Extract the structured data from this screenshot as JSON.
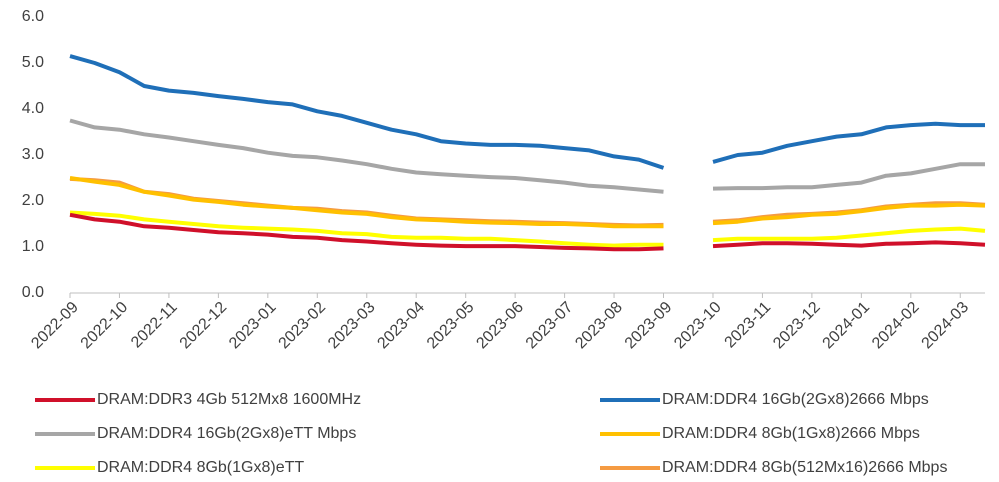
{
  "chart_data": {
    "type": "line",
    "categories": [
      "2022-09",
      null,
      "2022-10",
      null,
      "2022-11",
      null,
      "2022-12",
      null,
      "2023-01",
      null,
      "2023-02",
      null,
      "2023-03",
      null,
      "2023-04",
      null,
      "2023-05",
      null,
      "2023-06",
      null,
      "2023-07",
      null,
      "2023-08",
      null,
      "2023-09",
      null,
      "2023-10",
      null,
      "2023-11",
      null,
      "2023-12",
      null,
      "2024-01",
      null,
      "2024-02",
      null,
      "2024-03",
      null
    ],
    "series": [
      {
        "name": "DRAM:DDR3 4Gb 512Mx8 1600MHz",
        "color": "#d0102a",
        "values": [
          1.7,
          1.6,
          1.55,
          1.45,
          1.42,
          1.37,
          1.32,
          1.3,
          1.27,
          1.22,
          1.2,
          1.15,
          1.12,
          1.08,
          1.05,
          1.03,
          1.02,
          1.02,
          1.02,
          1.0,
          0.98,
          0.97,
          0.95,
          0.95,
          0.97,
          null,
          1.02,
          1.05,
          1.08,
          1.08,
          1.07,
          1.05,
          1.03,
          1.07,
          1.08,
          1.1,
          1.08,
          1.05
        ]
      },
      {
        "name": "DRAM:DDR4 16Gb(2Gx8)2666 Mbps",
        "color": "#1f6fb8",
        "values": [
          5.15,
          5.0,
          4.8,
          4.5,
          4.4,
          4.35,
          4.28,
          4.22,
          4.15,
          4.1,
          3.95,
          3.85,
          3.7,
          3.55,
          3.45,
          3.3,
          3.25,
          3.22,
          3.22,
          3.2,
          3.15,
          3.1,
          2.97,
          2.9,
          2.72,
          null,
          2.85,
          3.0,
          3.05,
          3.2,
          3.3,
          3.4,
          3.45,
          3.6,
          3.65,
          3.68,
          3.65,
          3.65
        ]
      },
      {
        "name": "DRAM:DDR4 16Gb(2Gx8)eTT Mbps",
        "color": "#a6a6a6",
        "values": [
          3.75,
          3.6,
          3.55,
          3.45,
          3.38,
          3.3,
          3.22,
          3.15,
          3.05,
          2.98,
          2.95,
          2.88,
          2.8,
          2.7,
          2.62,
          2.58,
          2.55,
          2.52,
          2.5,
          2.45,
          2.4,
          2.33,
          2.3,
          2.25,
          2.2,
          null,
          2.27,
          2.28,
          2.28,
          2.3,
          2.3,
          2.35,
          2.4,
          2.55,
          2.6,
          2.7,
          2.8,
          2.8
        ]
      },
      {
        "name": "DRAM:DDR4 8Gb(1Gx8)2666 Mbps",
        "color": "#ffc000",
        "values": [
          2.5,
          2.42,
          2.35,
          2.2,
          2.12,
          2.03,
          1.98,
          1.92,
          1.88,
          1.85,
          1.8,
          1.75,
          1.72,
          1.65,
          1.6,
          1.58,
          1.55,
          1.53,
          1.52,
          1.5,
          1.5,
          1.48,
          1.45,
          1.45,
          1.45,
          null,
          1.52,
          1.55,
          1.62,
          1.65,
          1.7,
          1.72,
          1.78,
          1.85,
          1.9,
          1.9,
          1.92,
          1.9
        ]
      },
      {
        "name": "DRAM:DDR4 8Gb(1Gx8)eTT",
        "color": "#ffff00",
        "values": [
          1.75,
          1.72,
          1.68,
          1.6,
          1.55,
          1.5,
          1.45,
          1.42,
          1.4,
          1.38,
          1.35,
          1.3,
          1.28,
          1.22,
          1.2,
          1.2,
          1.18,
          1.18,
          1.15,
          1.12,
          1.08,
          1.05,
          1.03,
          1.05,
          1.05,
          null,
          1.15,
          1.18,
          1.18,
          1.18,
          1.18,
          1.2,
          1.25,
          1.3,
          1.35,
          1.38,
          1.4,
          1.35
        ]
      },
      {
        "name": "DRAM:DDR4 8Gb(512Mx16)2666 Mbps",
        "color": "#f59b42",
        "values": [
          2.48,
          2.45,
          2.4,
          2.2,
          2.15,
          2.05,
          2.0,
          1.95,
          1.9,
          1.85,
          1.83,
          1.78,
          1.75,
          1.68,
          1.62,
          1.6,
          1.58,
          1.56,
          1.55,
          1.53,
          1.52,
          1.5,
          1.48,
          1.47,
          1.48,
          null,
          1.55,
          1.58,
          1.65,
          1.7,
          1.72,
          1.75,
          1.8,
          1.88,
          1.92,
          1.95,
          1.95,
          1.92
        ]
      }
    ],
    "ylim": [
      0,
      6
    ],
    "yticks": [
      {
        "value": 0,
        "label": "0.0"
      },
      {
        "value": 1,
        "label": "1.0"
      },
      {
        "value": 2,
        "label": "2.0"
      },
      {
        "value": 3,
        "label": "3.0"
      },
      {
        "value": 4,
        "label": "4.0"
      },
      {
        "value": 5,
        "label": "5.0"
      },
      {
        "value": 6,
        "label": "6.0"
      }
    ],
    "grid": false
  }
}
